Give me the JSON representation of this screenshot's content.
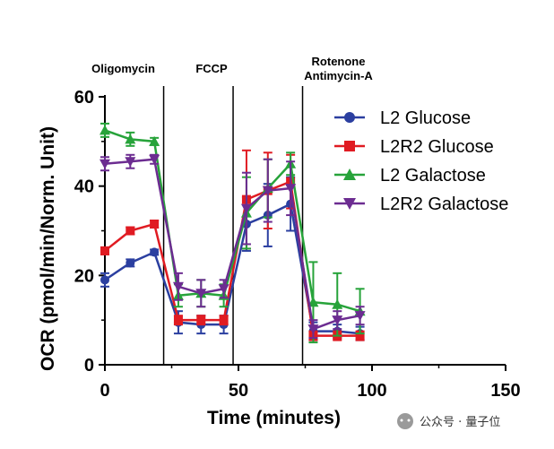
{
  "chart_data": {
    "type": "line",
    "xlabel": "Time (minutes)",
    "ylabel": "OCR (pmol/min/Norm. Unit)",
    "xlim": [
      0,
      150
    ],
    "ylim": [
      0,
      60
    ],
    "xticks": [
      0,
      50,
      100,
      150
    ],
    "yticks": [
      0,
      20,
      40,
      60
    ],
    "grid": false,
    "legend_position": "top-right",
    "injections": [
      {
        "label": "Oligomycin",
        "x": 22
      },
      {
        "label": "FCCP",
        "x": 48
      },
      {
        "label": "Rotenone\nAntimycin-A",
        "x": 74
      }
    ],
    "x": [
      0,
      9.5,
      18.5,
      27.5,
      36,
      44.5,
      53,
      61,
      69.5,
      78,
      87,
      95.5
    ],
    "series": [
      {
        "name": "L2 Glucose",
        "color": "#2b3fa0",
        "marker": "circle",
        "values": [
          19,
          22.8,
          25.2,
          9.5,
          9,
          9,
          31.5,
          33.5,
          36,
          7.5,
          7.5,
          7
        ],
        "errors": [
          1.5,
          0.8,
          0.6,
          2.5,
          2,
          2,
          6,
          7,
          6,
          2,
          1.5,
          1.5
        ]
      },
      {
        "name": "L2R2 Glucose",
        "color": "#e01b22",
        "marker": "square",
        "values": [
          25.5,
          30,
          31.5,
          10,
          10,
          10,
          37,
          39,
          41,
          6.5,
          6.5,
          6.5
        ],
        "errors": [
          0.8,
          0.8,
          0.8,
          1,
          1,
          1,
          11,
          8.5,
          6,
          1,
          1,
          1
        ]
      },
      {
        "name": "L2 Galactose",
        "color": "#27a33a",
        "marker": "triangle-up",
        "values": [
          52.5,
          50.5,
          50,
          15.5,
          16,
          15.5,
          34,
          39.5,
          45,
          14,
          13.5,
          12
        ],
        "errors": [
          1.5,
          1.5,
          0.8,
          2.5,
          3,
          2.5,
          8,
          6.5,
          2.5,
          9,
          7,
          5
        ]
      },
      {
        "name": "L2R2 Galactose",
        "color": "#6c2c91",
        "marker": "triangle-down",
        "values": [
          45,
          45.5,
          46,
          17.5,
          16,
          17,
          35,
          39,
          39.5,
          8,
          10,
          11
        ],
        "errors": [
          1.5,
          1.5,
          1,
          3,
          3,
          2,
          8,
          7,
          6,
          2,
          2,
          2
        ]
      }
    ]
  },
  "watermark": {
    "text": "公众号 · 量子位"
  }
}
